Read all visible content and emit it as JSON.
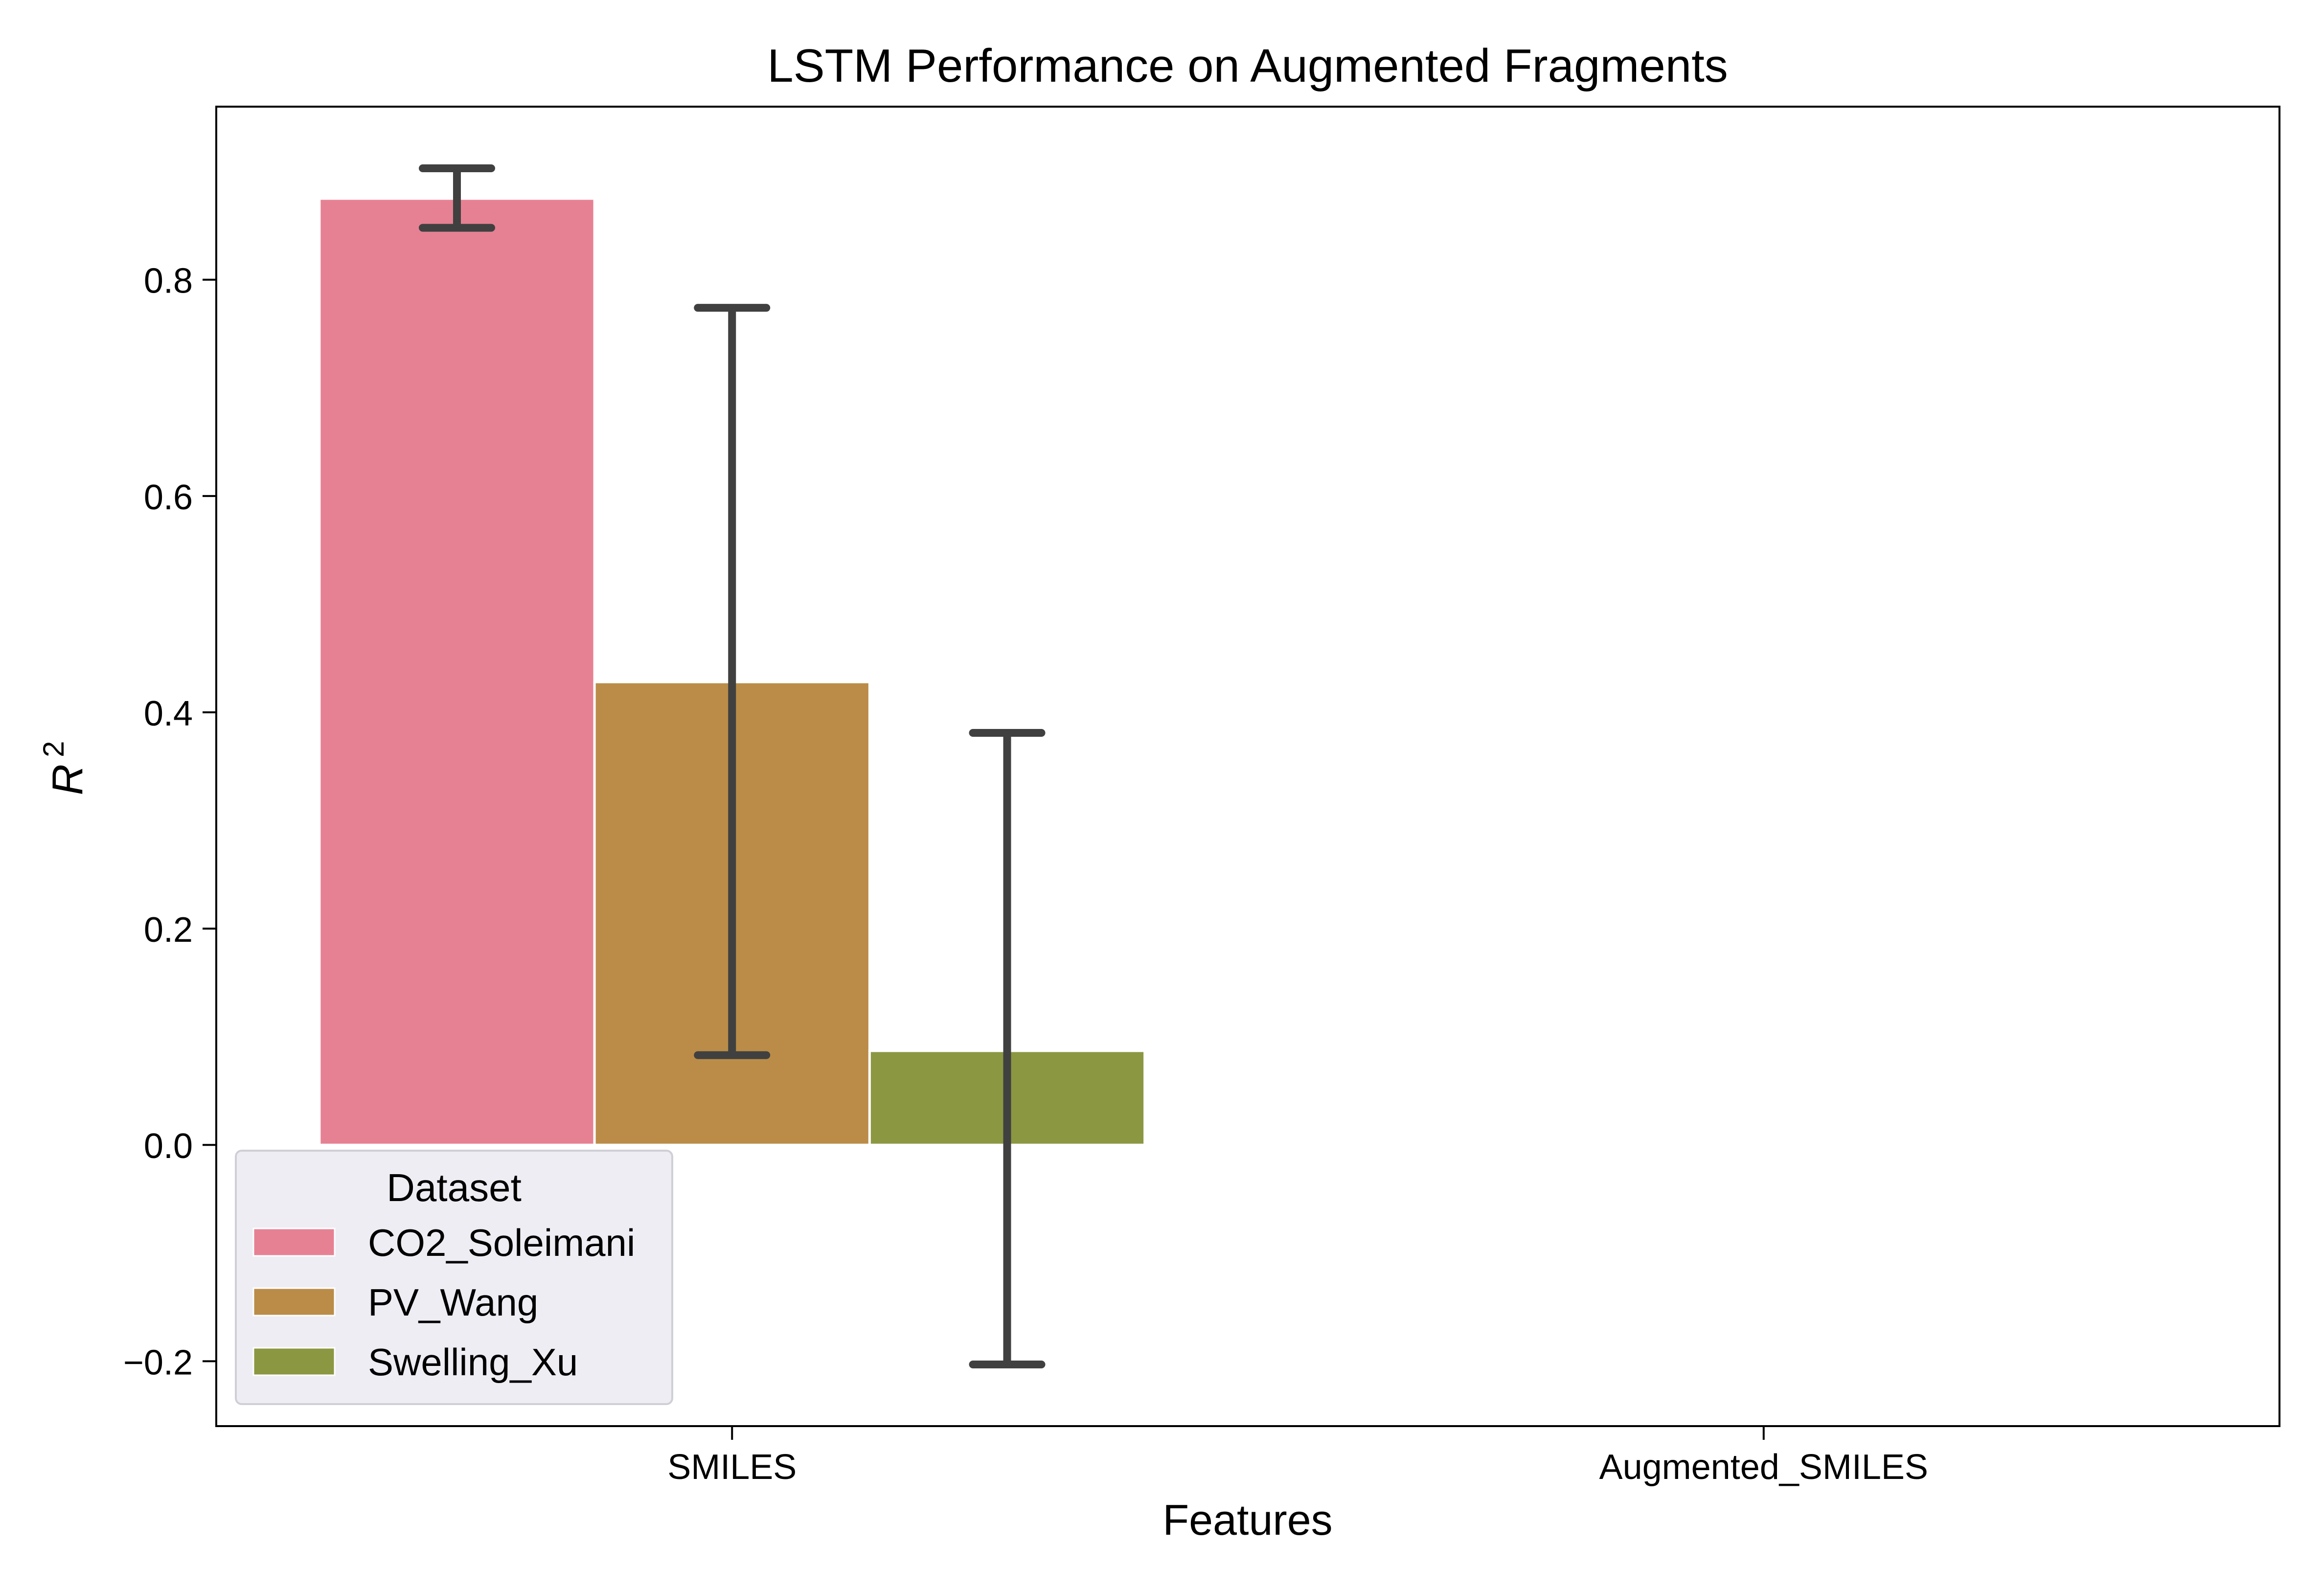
{
  "chart_data": {
    "type": "bar",
    "title": "LSTM Performance on Augmented Fragments",
    "xlabel": "Features",
    "ylabel": "R",
    "ylabel_superscript": "2",
    "categories": [
      "SMILES",
      "Augmented_SMILES"
    ],
    "ylim": [
      -0.26,
      0.96
    ],
    "yticks": [
      -0.2,
      0.0,
      0.2,
      0.4,
      0.6,
      0.8
    ],
    "ytick_labels": [
      "−0.2",
      "0.0",
      "0.2",
      "0.4",
      "0.6",
      "0.8"
    ],
    "grid": false,
    "legend": {
      "title": "Dataset",
      "placement": "lower-left"
    },
    "series": [
      {
        "name": "CO2_Soleimani",
        "color": "#e68193",
        "values": [
          0.875,
          null
        ],
        "error": [
          [
            0.848,
            0.903
          ],
          null
        ]
      },
      {
        "name": "PV_Wang",
        "color": "#ba8c48",
        "values": [
          0.428,
          null
        ],
        "error": [
          [
            0.083,
            0.774
          ],
          null
        ]
      },
      {
        "name": "Swelling_Xu",
        "color": "#8c9742",
        "values": [
          0.087,
          null
        ],
        "error": [
          [
            -0.203,
            0.381
          ],
          null
        ]
      }
    ],
    "error_bar_color": "#404040"
  }
}
